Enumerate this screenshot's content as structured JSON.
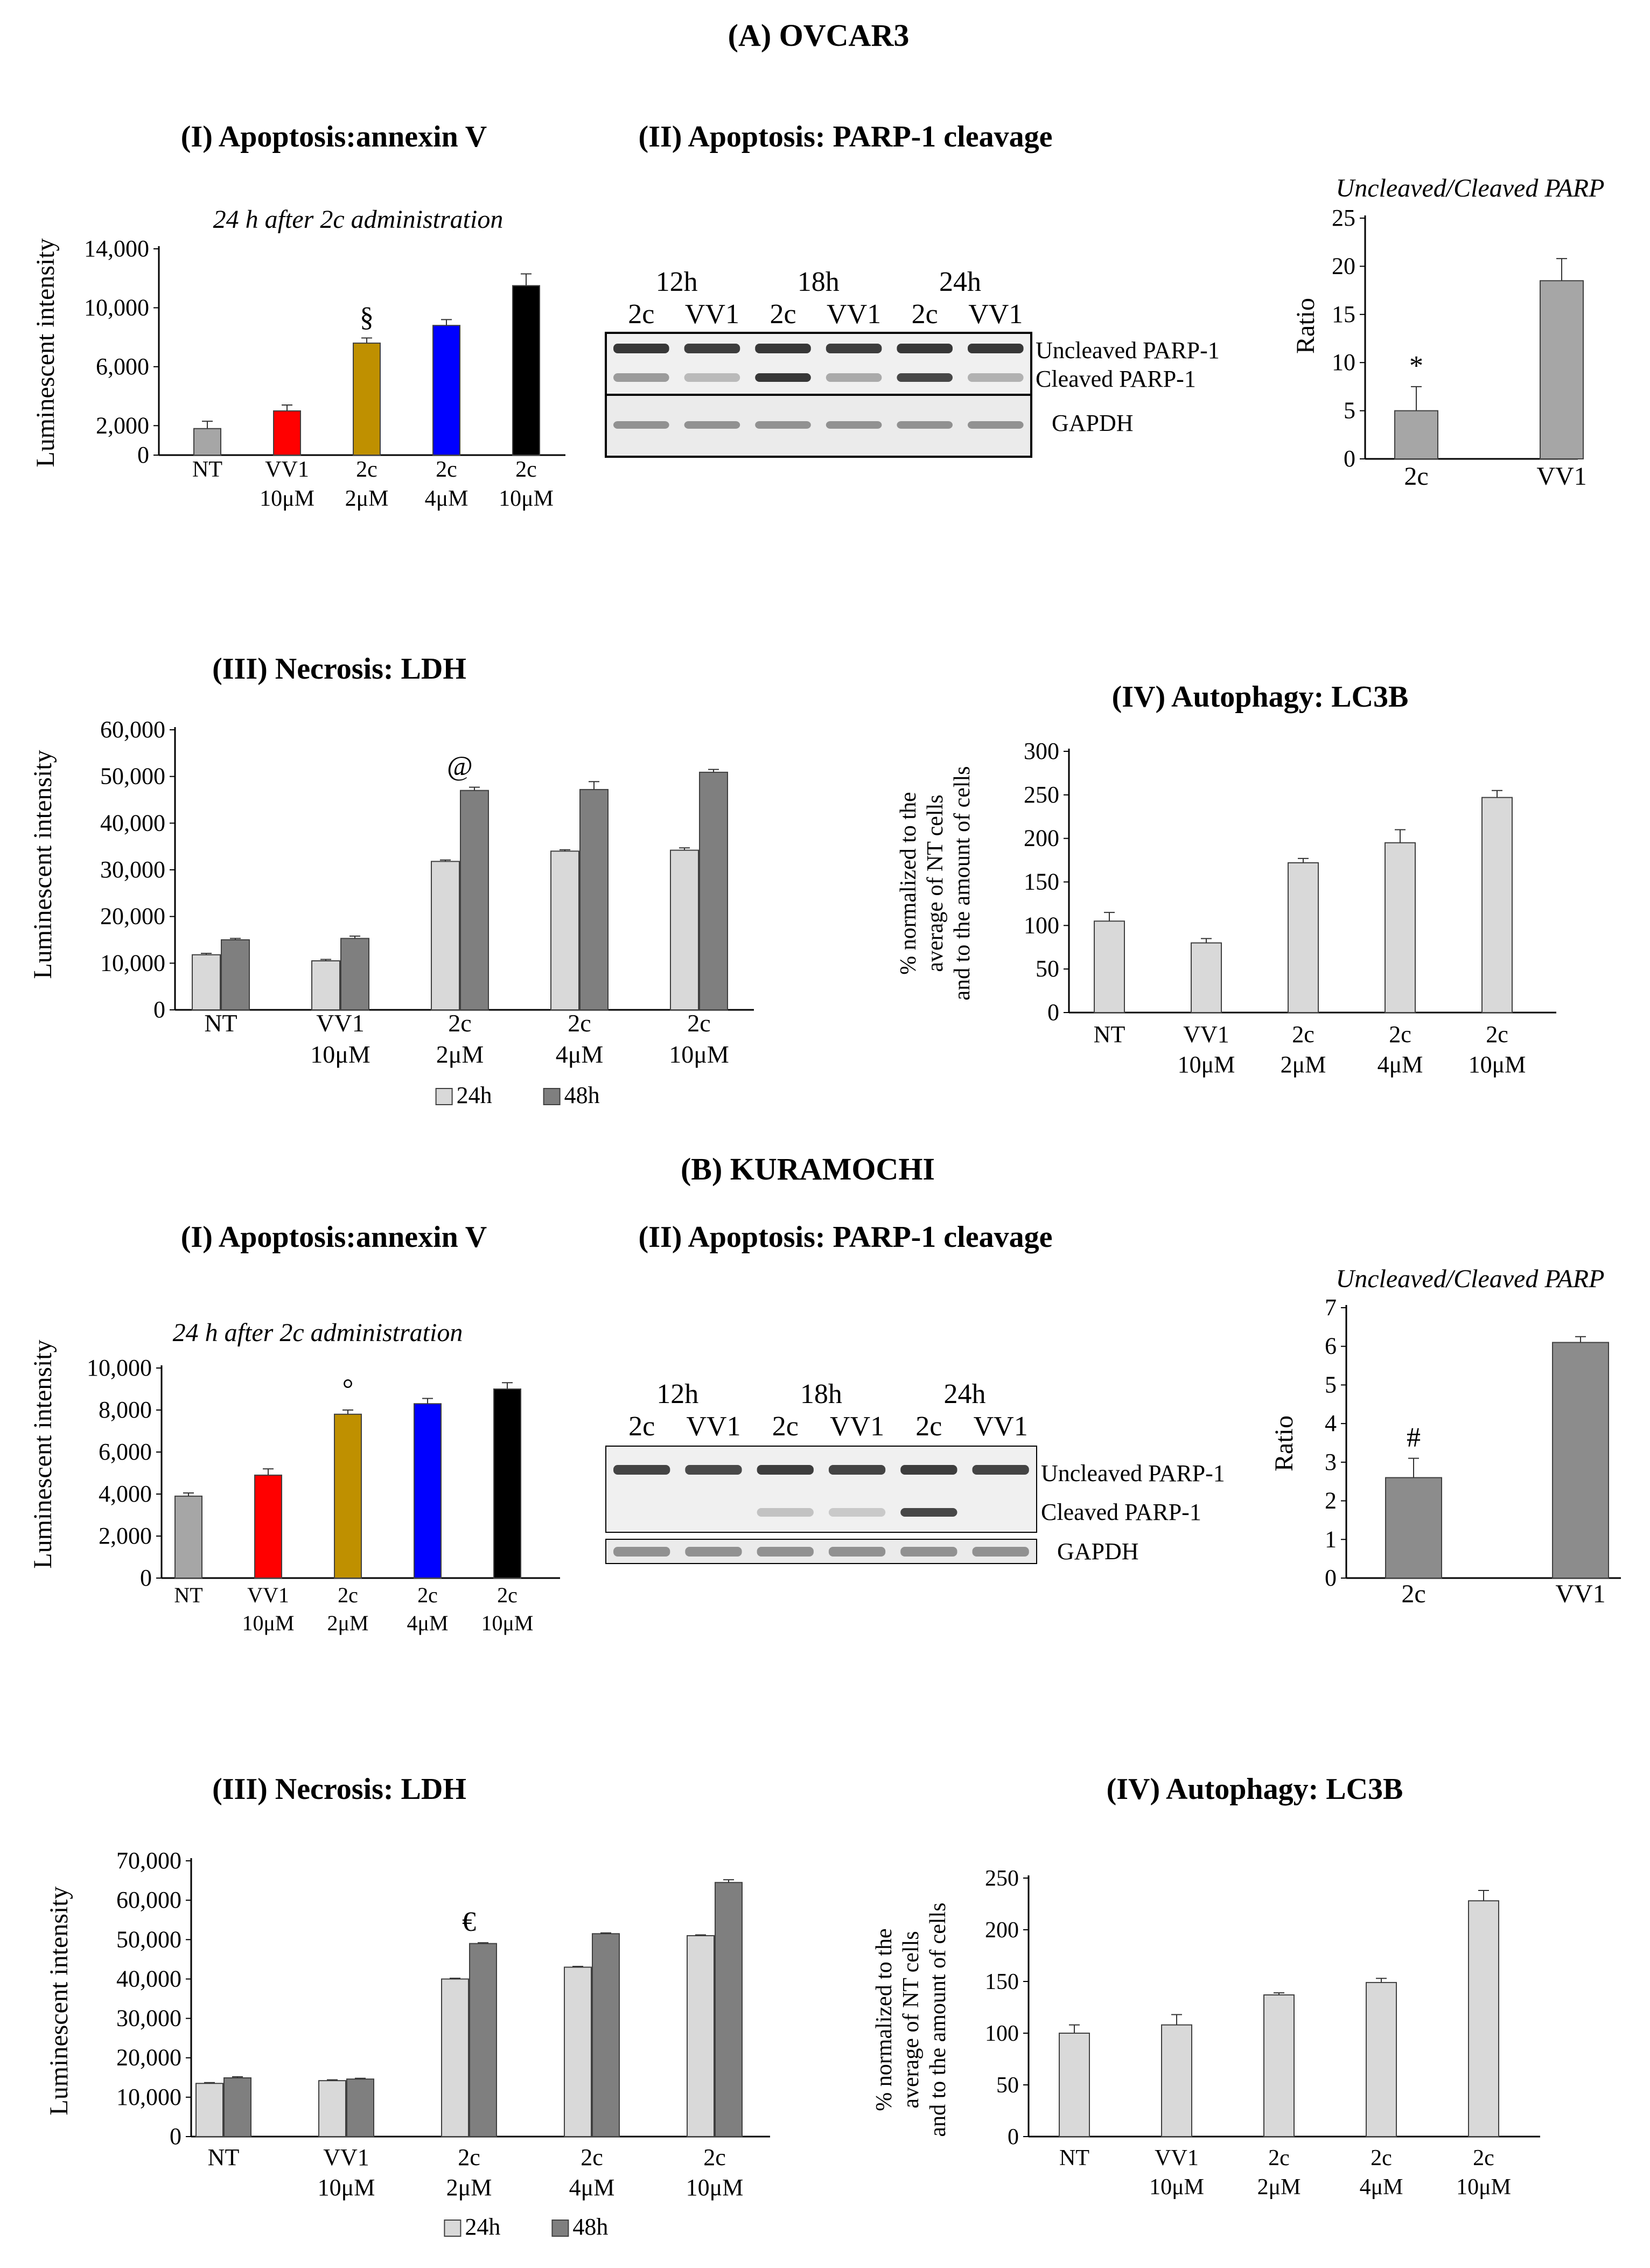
{
  "panel_a": {
    "title": "(A) OVCAR3",
    "annexin": {
      "title": "(I) Apoptosis:annexin V",
      "note": "24 h after 2c administration",
      "ylabel": "Luminescent intensity",
      "sig_mark": "§"
    },
    "parp": {
      "title": "(II) Apoptosis: PARP-1 cleavage",
      "times": [
        "12h",
        "18h",
        "24h"
      ],
      "lane_labels": [
        "2c",
        "VV1",
        "2c",
        "VV1",
        "2c",
        "VV1"
      ],
      "band_labels": [
        "Uncleaved PARP-1",
        "Cleaved PARP-1",
        "GAPDH"
      ],
      "uncleaved": [
        1.0,
        0.95,
        1.0,
        0.95,
        1.0,
        1.0
      ],
      "cleaved": [
        0.35,
        0.15,
        1.0,
        0.25,
        0.9,
        0.2
      ]
    },
    "ratio": {
      "title": "Uncleaved/Cleaved PARP",
      "ylabel": "Ratio",
      "sig_mark": "*"
    },
    "ldh": {
      "title": "(III) Necrosis: LDH",
      "ylabel": "Luminescent intensity",
      "sig_mark": "@"
    },
    "lc3b": {
      "title": "(IV) Autophagy: LC3B",
      "ylabel_lines": [
        "% normalized to the",
        "average of NT cells",
        "and to the amount of cells"
      ]
    }
  },
  "panel_b": {
    "title": "(B) KURAMOCHI",
    "annexin": {
      "title": "(I) Apoptosis:annexin V",
      "note": "24 h after 2c administration",
      "ylabel": "Luminescent intensity",
      "sig_mark": "°"
    },
    "parp": {
      "title": "(II) Apoptosis: PARP-1 cleavage",
      "times": [
        "12h",
        "18h",
        "24h"
      ],
      "lane_labels": [
        "2c",
        "VV1",
        "2c",
        "VV1",
        "2c",
        "VV1"
      ],
      "band_labels": [
        "Uncleaved PARP-1",
        "Cleaved PARP-1",
        "GAPDH"
      ],
      "uncleaved": [
        0.9,
        0.85,
        0.95,
        0.9,
        0.95,
        0.9
      ],
      "cleaved": [
        0.0,
        0.0,
        0.1,
        0.05,
        0.9,
        0.0
      ]
    },
    "ratio": {
      "title": "Uncleaved/Cleaved PARP",
      "ylabel": "Ratio",
      "sig_mark": "#"
    },
    "ldh": {
      "title": "(III) Necrosis: LDH",
      "ylabel": "Luminescent intensity",
      "sig_mark": "€"
    },
    "lc3b": {
      "title": "(IV) Autophagy: LC3B",
      "ylabel_lines": [
        "% normalized to the",
        "average of NT cells",
        "and to the amount of cells"
      ]
    }
  },
  "colors": {
    "grey": "#a6a6a6",
    "red": "#ff0000",
    "gold": "#bf9000",
    "blue": "#0000ff",
    "black": "#000000",
    "light_grey": "#d9d9d9",
    "dark_grey": "#7f7f7f",
    "ratio_grey_a": "#a6a6a6",
    "ratio_grey_b": "#8c8c8c"
  },
  "chart_data": [
    {
      "id": "a_annexin",
      "type": "bar",
      "categories": [
        "NT\n",
        "VV1\n10μM",
        "2c\n2μM",
        "2c\n4μM",
        "2c\n10μM"
      ],
      "series": [
        {
          "values": [
            1800,
            3000,
            7600,
            8800,
            11500
          ]
        }
      ],
      "errors": [
        500,
        400,
        350,
        400,
        800
      ],
      "bar_colors": [
        "grey",
        "red",
        "gold",
        "blue",
        "black"
      ],
      "ylim": [
        0,
        14000
      ],
      "yticks": [
        0,
        2000,
        6000,
        10000,
        14000
      ],
      "ytick_labels": [
        "0",
        "2,000",
        "6,000",
        "10,000",
        "14,000"
      ],
      "marks": [
        {
          "index": 2,
          "text_key": "panel_a.annexin.sig_mark"
        }
      ]
    },
    {
      "id": "a_ratio",
      "type": "bar",
      "categories": [
        "2c",
        "VV1"
      ],
      "series": [
        {
          "values": [
            5,
            18.5
          ]
        }
      ],
      "errors": [
        2.5,
        2.3
      ],
      "bar_colors": [
        "ratio_grey_a",
        "ratio_grey_a"
      ],
      "ylim": [
        0,
        25
      ],
      "yticks": [
        0,
        5,
        10,
        15,
        20,
        25
      ],
      "ytick_labels": [
        "0",
        "5",
        "10",
        "15",
        "20",
        "25"
      ],
      "marks": [
        {
          "index": 0,
          "text_key": "panel_a.ratio.sig_mark"
        }
      ]
    },
    {
      "id": "a_ldh",
      "type": "bar",
      "categories": [
        "NT\n",
        "VV1\n10μM",
        "2c\n2μM",
        "2c\n4μM",
        "2c\n10μM"
      ],
      "series": [
        {
          "name": "24h",
          "values": [
            11800,
            10500,
            31800,
            34000,
            34200
          ]
        },
        {
          "name": "48h",
          "values": [
            15000,
            15300,
            47000,
            47200,
            50900
          ]
        }
      ],
      "errors": [
        [
          300,
          300,
          300,
          300,
          500
        ],
        [
          300,
          500,
          700,
          1700,
          600
        ]
      ],
      "series_colors": [
        "light_grey",
        "dark_grey"
      ],
      "ylim": [
        0,
        60000
      ],
      "yticks": [
        0,
        10000,
        20000,
        30000,
        40000,
        50000,
        60000
      ],
      "ytick_labels": [
        "0",
        "10,000",
        "20,000",
        "30,000",
        "40,000",
        "50,000",
        "60,000"
      ],
      "legend": "bottom",
      "marks": [
        {
          "index": 2,
          "text_key": "panel_a.ldh.sig_mark"
        }
      ]
    },
    {
      "id": "a_lc3b",
      "type": "bar",
      "categories": [
        "NT\n",
        "VV1\n10μM",
        "2c\n2μM",
        "2c\n4μM",
        "2c\n10μM"
      ],
      "series": [
        {
          "values": [
            105,
            80,
            172,
            195,
            247
          ]
        }
      ],
      "errors": [
        10,
        5,
        5,
        15,
        8
      ],
      "bar_colors": [
        "light_grey",
        "light_grey",
        "light_grey",
        "light_grey",
        "light_grey"
      ],
      "ylim": [
        0,
        300
      ],
      "yticks": [
        0,
        50,
        100,
        150,
        200,
        250,
        300
      ],
      "ytick_labels": [
        "0",
        "50",
        "100",
        "150",
        "200",
        "250",
        "300"
      ]
    },
    {
      "id": "b_annexin",
      "type": "bar",
      "categories": [
        "NT\n",
        "VV1\n10μM",
        "2c\n2μM",
        "2c\n4μM",
        "2c\n10μM"
      ],
      "series": [
        {
          "values": [
            3900,
            4900,
            7800,
            8300,
            9000
          ]
        }
      ],
      "errors": [
        150,
        300,
        200,
        250,
        300
      ],
      "bar_colors": [
        "grey",
        "red",
        "gold",
        "blue",
        "black"
      ],
      "ylim": [
        0,
        10000
      ],
      "yticks": [
        0,
        2000,
        4000,
        6000,
        8000,
        10000
      ],
      "ytick_labels": [
        "0",
        "2,000",
        "4,000",
        "6,000",
        "8,000",
        "10,000"
      ],
      "marks": [
        {
          "index": 2,
          "text_key": "panel_b.annexin.sig_mark"
        }
      ]
    },
    {
      "id": "b_ratio",
      "type": "bar",
      "categories": [
        "2c",
        "VV1"
      ],
      "series": [
        {
          "values": [
            2.6,
            6.1
          ]
        }
      ],
      "errors": [
        0.5,
        0.15
      ],
      "bar_colors": [
        "ratio_grey_b",
        "ratio_grey_b"
      ],
      "ylim": [
        0,
        7
      ],
      "yticks": [
        0,
        1,
        2,
        3,
        4,
        5,
        6,
        7
      ],
      "ytick_labels": [
        "0",
        "1",
        "2",
        "3",
        "4",
        "5",
        "6",
        "7"
      ],
      "marks": [
        {
          "index": 0,
          "text_key": "panel_b.ratio.sig_mark"
        }
      ]
    },
    {
      "id": "b_ldh",
      "type": "bar",
      "categories": [
        "NT\n",
        "VV1\n10μM",
        "2c\n2μM",
        "2c\n4μM",
        "2c\n10μM"
      ],
      "series": [
        {
          "name": "24h",
          "values": [
            13500,
            14200,
            40000,
            43000,
            51000
          ]
        },
        {
          "name": "48h",
          "values": [
            14900,
            14600,
            49000,
            51500,
            64500
          ]
        }
      ],
      "errors": [
        [
          200,
          200,
          200,
          200,
          200
        ],
        [
          300,
          200,
          200,
          200,
          700
        ]
      ],
      "series_colors": [
        "light_grey",
        "dark_grey"
      ],
      "ylim": [
        0,
        70000
      ],
      "yticks": [
        0,
        10000,
        20000,
        30000,
        40000,
        50000,
        60000,
        70000
      ],
      "ytick_labels": [
        "0",
        "10,000",
        "20,000",
        "30,000",
        "40,000",
        "50,000",
        "60,000",
        "70,000"
      ],
      "legend": "bottom",
      "marks": [
        {
          "index": 2,
          "text_key": "panel_b.ldh.sig_mark"
        }
      ]
    },
    {
      "id": "b_lc3b",
      "type": "bar",
      "categories": [
        "NT\n",
        "VV1\n10μM",
        "2c\n2μM",
        "2c\n4μM",
        "2c\n10μM"
      ],
      "series": [
        {
          "values": [
            100,
            108,
            137,
            149,
            228
          ]
        }
      ],
      "errors": [
        8,
        10,
        2,
        4,
        10
      ],
      "bar_colors": [
        "light_grey",
        "light_grey",
        "light_grey",
        "light_grey",
        "light_grey"
      ],
      "ylim": [
        0,
        250
      ],
      "yticks": [
        0,
        50,
        100,
        150,
        200,
        250
      ],
      "ytick_labels": [
        "0",
        "50",
        "100",
        "150",
        "200",
        "250"
      ]
    }
  ]
}
